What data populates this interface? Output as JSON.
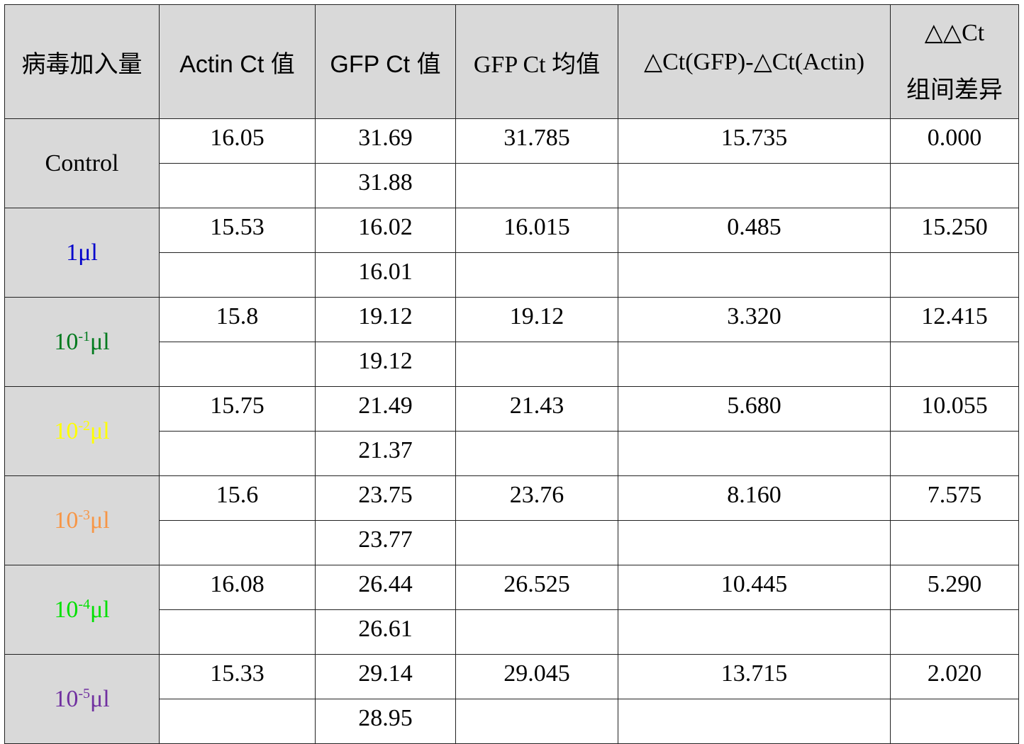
{
  "header": [
    "病毒加入量",
    "Actin Ct 值",
    "GFP Ct 值",
    "GFP Ct 均值",
    "△Ct(GFP)-△Ct(Actin)",
    [
      "△△Ct",
      "组间差异"
    ]
  ],
  "groups": [
    {
      "label": [
        "Control"
      ],
      "color": "#000000",
      "actin": "16.05",
      "gfp": [
        "31.69",
        "31.88"
      ],
      "mean": "31.785",
      "delta": "15.735",
      "ddct": "0.000"
    },
    {
      "label": [
        "1μl"
      ],
      "color": "#0000cc",
      "actin": "15.53",
      "gfp": [
        "16.02",
        "16.01"
      ],
      "mean": "16.015",
      "delta": "0.485",
      "ddct": "15.250"
    },
    {
      "label": [
        "10",
        "-1",
        "μl"
      ],
      "color": "#007a1e",
      "actin": "15.8",
      "gfp": [
        "19.12",
        "19.12"
      ],
      "mean": "19.12",
      "delta": "3.320",
      "ddct": "12.415"
    },
    {
      "label": [
        "10",
        "-2",
        "μl"
      ],
      "color": "#ffff00",
      "actin": "15.75",
      "gfp": [
        "21.49",
        "21.37"
      ],
      "mean": "21.43",
      "delta": "5.680",
      "ddct": "10.055"
    },
    {
      "label": [
        "10",
        "-3",
        "μl"
      ],
      "color": "#f79646",
      "actin": "15.6",
      "gfp": [
        "23.75",
        "23.77"
      ],
      "mean": "23.76",
      "delta": "8.160",
      "ddct": "7.575"
    },
    {
      "label": [
        "10",
        "-4",
        "μl"
      ],
      "color": "#00e000",
      "actin": "16.08",
      "gfp": [
        "26.44",
        "26.61"
      ],
      "mean": "26.525",
      "delta": "10.445",
      "ddct": "5.290"
    },
    {
      "label": [
        "10",
        "-5",
        "μl"
      ],
      "color": "#7030a0",
      "actin": "15.33",
      "gfp": [
        "29.14",
        "28.95"
      ],
      "mean": "29.045",
      "delta": "13.715",
      "ddct": "2.020"
    }
  ]
}
